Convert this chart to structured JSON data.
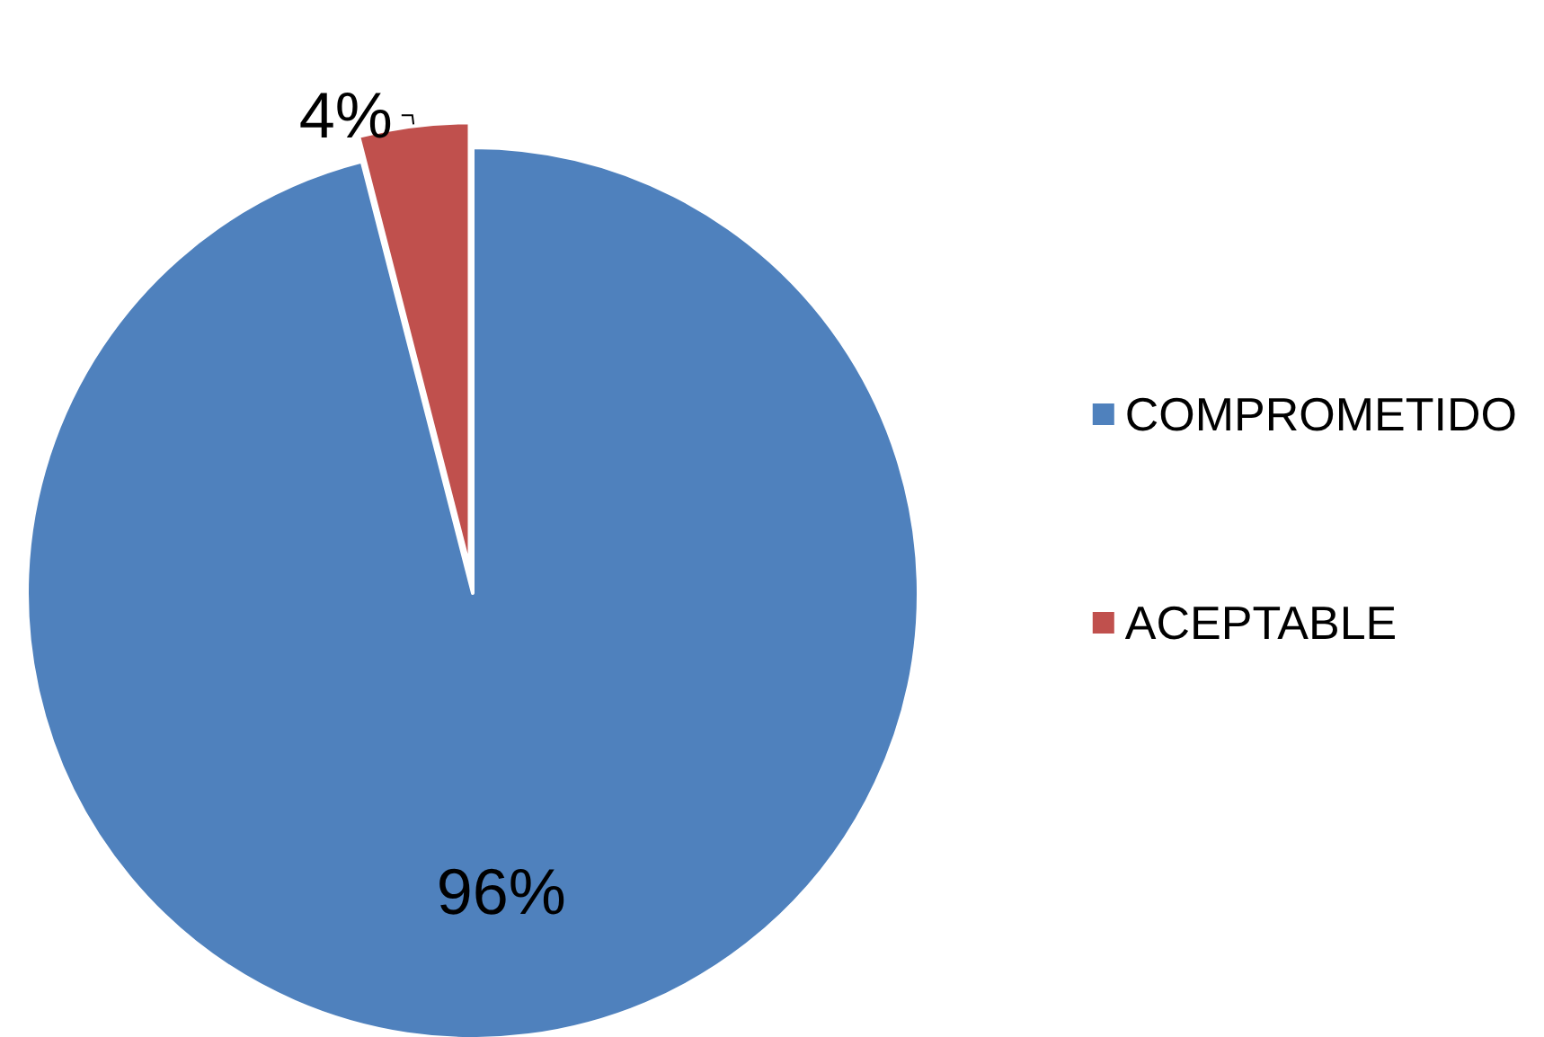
{
  "chart_data": {
    "type": "pie",
    "categories": [
      "COMPROMETIDO",
      "ACEPTABLE"
    ],
    "values": [
      96,
      4
    ],
    "colors": [
      "#4f81bd",
      "#c0504d"
    ],
    "value_labels": [
      "96%",
      "4%"
    ],
    "legend": "right"
  }
}
